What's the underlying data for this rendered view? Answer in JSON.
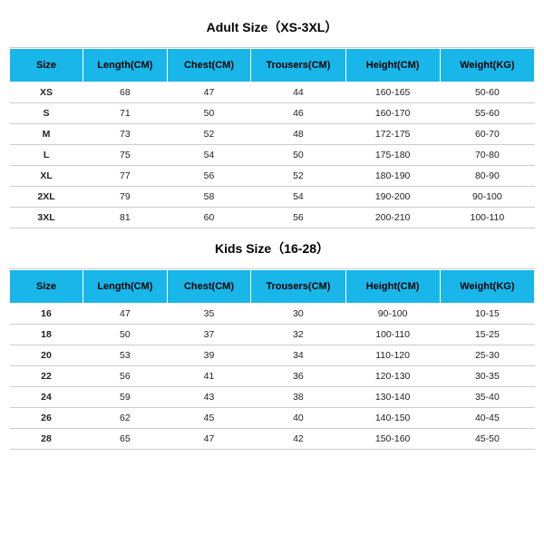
{
  "header_bg": "#19b6e9",
  "header_text_color": "#000000",
  "border_color": "#cccccc",
  "background_color": "#ffffff",
  "row_text_color": "#222222",
  "title_fontsize": 14,
  "header_fontsize": 11,
  "cell_fontsize": 10.5,
  "columns": [
    "Size",
    "Length(CM)",
    "Chest(CM)",
    "Trousers(CM)",
    "Height(CM)",
    "Weight(KG)"
  ],
  "adult": {
    "title": "Adult Size（XS-3XL）",
    "rows": [
      [
        "XS",
        "68",
        "47",
        "44",
        "160-165",
        "50-60"
      ],
      [
        "S",
        "71",
        "50",
        "46",
        "160-170",
        "55-60"
      ],
      [
        "M",
        "73",
        "52",
        "48",
        "172-175",
        "60-70"
      ],
      [
        "L",
        "75",
        "54",
        "50",
        "175-180",
        "70-80"
      ],
      [
        "XL",
        "77",
        "56",
        "52",
        "180-190",
        "80-90"
      ],
      [
        "2XL",
        "79",
        "58",
        "54",
        "190-200",
        "90-100"
      ],
      [
        "3XL",
        "81",
        "60",
        "56",
        "200-210",
        "100-110"
      ]
    ]
  },
  "kids": {
    "title": "Kids Size（16-28）",
    "rows": [
      [
        "16",
        "47",
        "35",
        "30",
        "90-100",
        "10-15"
      ],
      [
        "18",
        "50",
        "37",
        "32",
        "100-110",
        "15-25"
      ],
      [
        "20",
        "53",
        "39",
        "34",
        "110-120",
        "25-30"
      ],
      [
        "22",
        "56",
        "41",
        "36",
        "120-130",
        "30-35"
      ],
      [
        "24",
        "59",
        "43",
        "38",
        "130-140",
        "35-40"
      ],
      [
        "26",
        "62",
        "45",
        "40",
        "140-150",
        "40-45"
      ],
      [
        "28",
        "65",
        "47",
        "42",
        "150-160",
        "45-50"
      ]
    ]
  }
}
